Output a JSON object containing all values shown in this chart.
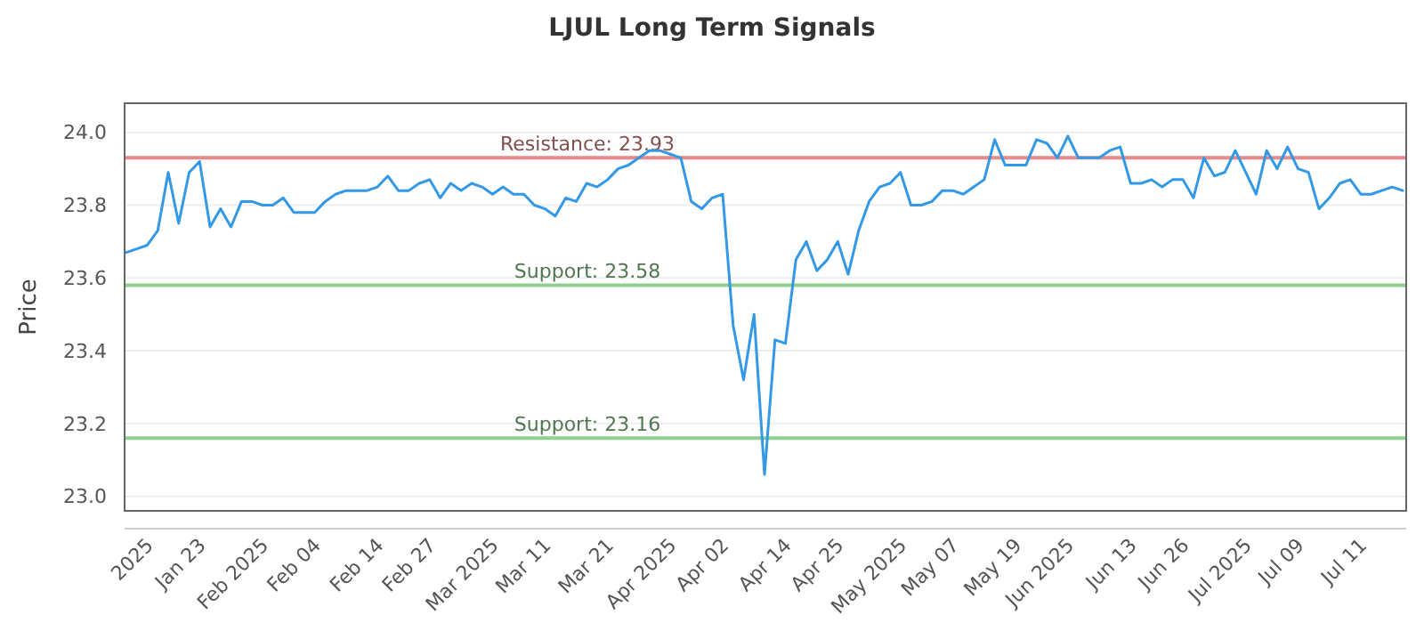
{
  "chart_data": {
    "type": "line",
    "title": "LJUL Long Term Signals",
    "ylabel": "Price",
    "categories": [
      null,
      null,
      "2025",
      null,
      null,
      null,
      null,
      "Jan 23",
      null,
      null,
      null,
      null,
      null,
      "Feb 2025",
      null,
      null,
      null,
      null,
      "Feb 04",
      null,
      null,
      null,
      null,
      null,
      "Feb 14",
      null,
      null,
      null,
      null,
      "Feb 27",
      null,
      null,
      null,
      null,
      null,
      "Mar 2025",
      null,
      null,
      null,
      null,
      "Mar 11",
      null,
      null,
      null,
      null,
      null,
      "Mar 21",
      null,
      null,
      null,
      null,
      null,
      "Apr 2025",
      null,
      null,
      null,
      null,
      "Apr 02",
      null,
      null,
      null,
      null,
      null,
      "Apr 14",
      null,
      null,
      null,
      null,
      "Apr 25",
      null,
      null,
      null,
      null,
      null,
      "May 2025",
      null,
      null,
      null,
      null,
      "May 07",
      null,
      null,
      null,
      null,
      null,
      "May 19",
      null,
      null,
      null,
      null,
      "Jun 2025",
      null,
      null,
      null,
      null,
      null,
      "Jun 13",
      null,
      null,
      null,
      null,
      "Jun 26",
      null,
      null,
      null,
      null,
      null,
      "Jul 2025",
      null,
      null,
      null,
      null,
      "Jul 09",
      null,
      null,
      null,
      null,
      null,
      "Jul 11",
      null,
      null,
      null,
      null
    ],
    "series": [
      {
        "color": "#3399e6",
        "values": [
          23.67,
          23.68,
          23.69,
          23.73,
          23.89,
          23.75,
          23.89,
          23.92,
          23.74,
          23.79,
          23.74,
          23.81,
          23.81,
          23.8,
          23.8,
          23.82,
          23.78,
          23.78,
          23.78,
          23.81,
          23.83,
          23.84,
          23.84,
          23.84,
          23.85,
          23.88,
          23.84,
          23.84,
          23.86,
          23.87,
          23.82,
          23.86,
          23.84,
          23.86,
          23.85,
          23.83,
          23.85,
          23.83,
          23.83,
          23.8,
          23.79,
          23.77,
          23.82,
          23.81,
          23.86,
          23.85,
          23.87,
          23.9,
          23.91,
          23.93,
          23.95,
          23.95,
          23.94,
          23.93,
          23.81,
          23.79,
          23.82,
          23.83,
          23.47,
          23.32,
          23.5,
          23.06,
          23.43,
          23.42,
          23.65,
          23.7,
          23.62,
          23.65,
          23.7,
          23.61,
          23.73,
          23.81,
          23.85,
          23.86,
          23.89,
          23.8,
          23.8,
          23.81,
          23.84,
          23.84,
          23.83,
          23.85,
          23.87,
          23.98,
          23.91,
          23.91,
          23.91,
          23.98,
          23.97,
          23.93,
          23.99,
          23.93,
          23.93,
          23.93,
          23.95,
          23.96,
          23.86,
          23.86,
          23.87,
          23.85,
          23.87,
          23.87,
          23.82,
          23.93,
          23.88,
          23.89,
          23.95,
          23.89,
          23.83,
          23.95,
          23.9,
          23.96,
          23.9,
          23.89,
          23.79,
          23.82,
          23.86,
          23.87,
          23.83,
          23.83,
          23.84,
          23.85,
          23.84
        ]
      }
    ],
    "ylim": [
      22.96,
      24.08
    ],
    "yticks": [
      {
        "value": 23,
        "label": "23.0"
      },
      {
        "value": 23.2,
        "label": "23.2"
      },
      {
        "value": 23.4,
        "label": "23.4"
      },
      {
        "value": 23.6,
        "label": "23.6"
      },
      {
        "value": 23.8,
        "label": "23.8"
      },
      {
        "value": 24,
        "label": "24.0"
      }
    ],
    "grid": "y",
    "marker": "none",
    "line_style": "solid",
    "ref_lines": [
      {
        "axis": "y",
        "value": 23.93,
        "label": "Resistance: 23.93",
        "color": "#e88a8a"
      },
      {
        "axis": "y",
        "value": 23.58,
        "label": "Support: 23.58",
        "color": "#8fd08f"
      },
      {
        "axis": "y",
        "value": 23.16,
        "label": "Support: 23.16",
        "color": "#8fd08f"
      }
    ]
  }
}
